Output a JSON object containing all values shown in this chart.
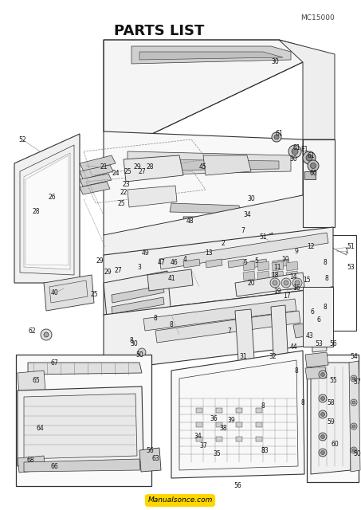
{
  "title": "PARTS LIST",
  "model": "MC15000",
  "watermark": "Manualsonce.com",
  "watermark_bg": "#FFD700",
  "bg_color": "#ffffff",
  "fig_width": 4.53,
  "fig_height": 6.4,
  "dpi": 100,
  "line_color": "#333333",
  "light_line_color": "#888888",
  "gray_fill": "#e8e8e8",
  "light_gray": "#f0f0f0"
}
